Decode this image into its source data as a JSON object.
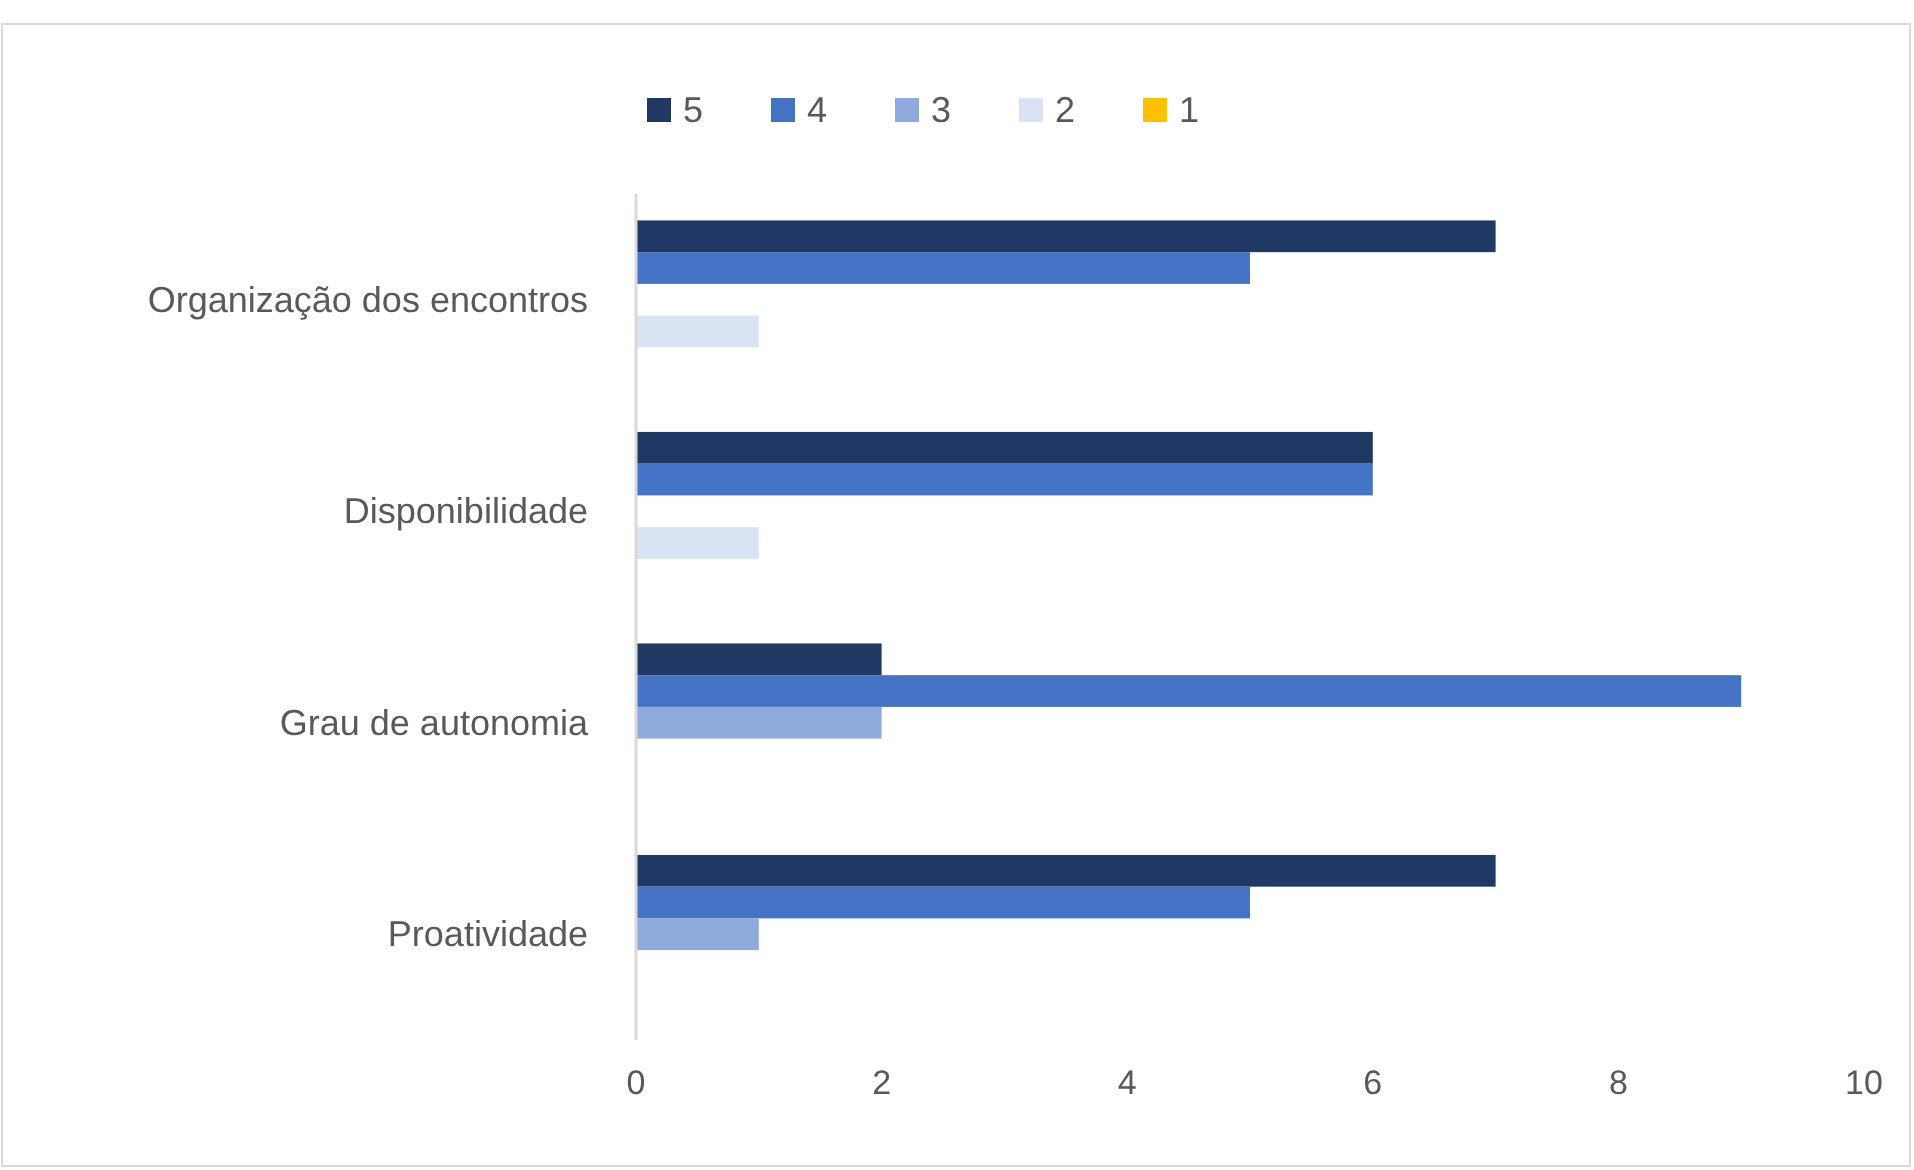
{
  "chart_data": {
    "type": "bar",
    "orientation": "horizontal",
    "categories": [
      "Organização dos encontros",
      "Disponibilidade",
      "Grau de autonomia",
      "Proatividade"
    ],
    "series": [
      {
        "name": "5",
        "color": "#1f3864",
        "values": [
          7,
          6,
          2,
          7
        ]
      },
      {
        "name": "4",
        "color": "#4472c4",
        "values": [
          5,
          6,
          9,
          5
        ]
      },
      {
        "name": "3",
        "color": "#8faadc",
        "values": [
          0,
          0,
          2,
          1
        ]
      },
      {
        "name": "2",
        "color": "#dae3f3",
        "values": [
          1,
          1,
          0,
          0
        ]
      },
      {
        "name": "1",
        "color": "#ffc000",
        "values": [
          0,
          0,
          0,
          0
        ]
      }
    ],
    "xlim": [
      0,
      10
    ],
    "xticks": [
      0,
      2,
      4,
      6,
      8,
      10
    ],
    "grid": false,
    "legend": "top"
  }
}
